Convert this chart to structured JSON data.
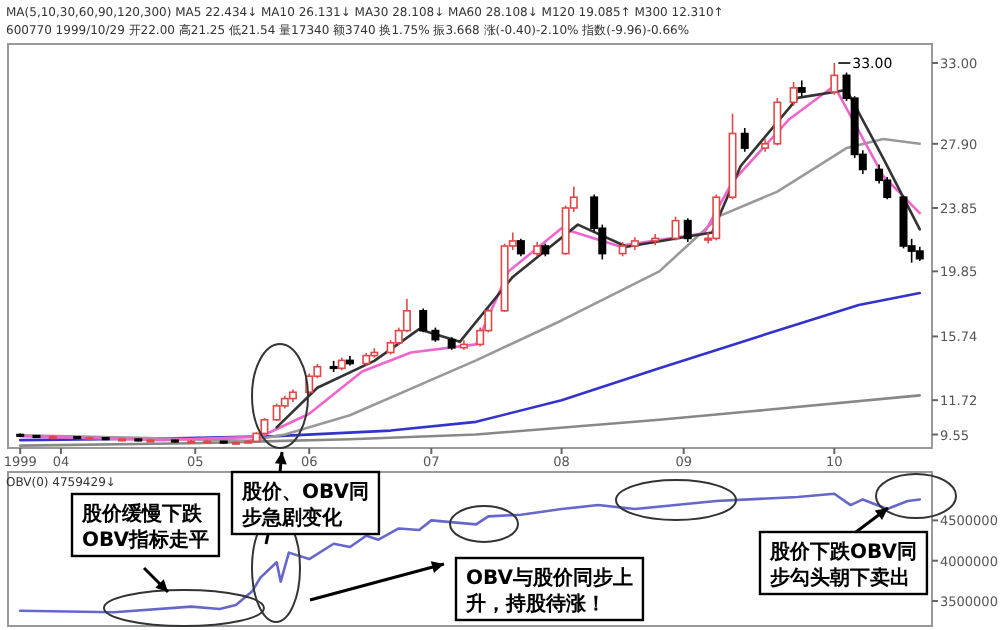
{
  "chart_data": [
    {
      "type": "candlestick",
      "annotations": [
        "MA(5,10,30,60,90,120,300)  MA5 22.434↓  MA10 26.131↓  MA30 28.108↓  MA60 28.108↓  M120 19.085↑  M300 12.310↑",
        "600770 1999/10/29 开22.00 高21.25 低21.54 量17340 额3740 换1.75% 振3.668 涨(-0.40)-2.10% 指数(-9.96)-0.66%",
        {
          "text": "33.00",
          "x": "1999-10-08",
          "y": 33.0
        }
      ],
      "x": [
        "1999-03-22",
        "1999-03-26",
        "1999-03-30",
        "1999-04-05",
        "1999-04-08",
        "1999-04-12",
        "1999-04-16",
        "1999-04-20",
        "1999-04-23",
        "1999-04-29",
        "1999-05-03",
        "1999-05-07",
        "1999-05-11",
        "1999-05-14",
        "1999-05-17",
        "1999-05-19",
        "1999-05-21",
        "1999-05-24",
        "1999-05-26",
        "1999-05-28",
        "1999-06-01",
        "1999-06-03",
        "1999-06-07",
        "1999-06-09",
        "1999-06-11",
        "1999-06-15",
        "1999-06-17",
        "1999-06-21",
        "1999-06-23",
        "1999-06-25",
        "1999-06-29",
        "1999-07-02",
        "1999-07-06",
        "1999-07-09",
        "1999-07-13",
        "1999-07-15",
        "1999-07-19",
        "1999-07-21",
        "1999-07-23",
        "1999-07-27",
        "1999-07-29",
        "1999-08-03",
        "1999-08-05",
        "1999-08-10",
        "1999-08-12",
        "1999-08-17",
        "1999-08-20",
        "1999-08-25",
        "1999-08-30",
        "1999-09-02",
        "1999-09-07",
        "1999-09-09",
        "1999-09-13",
        "1999-09-16",
        "1999-09-21",
        "1999-09-24",
        "1999-09-28",
        "1999-09-30",
        "1999-10-08",
        "1999-10-11",
        "1999-10-13",
        "1999-10-15",
        "1999-10-19",
        "1999-10-21",
        "1999-10-25",
        "1999-10-27",
        "1999-10-29"
      ],
      "ohlc": [
        [
          9.55,
          9.62,
          9.4,
          9.48
        ],
        [
          9.48,
          9.52,
          9.36,
          9.41
        ],
        [
          9.41,
          9.5,
          9.35,
          9.41
        ],
        [
          9.41,
          9.45,
          9.3,
          9.34
        ],
        [
          9.34,
          9.42,
          9.28,
          9.34
        ],
        [
          9.34,
          9.38,
          9.2,
          9.26
        ],
        [
          9.26,
          9.34,
          9.2,
          9.26
        ],
        [
          9.26,
          9.3,
          9.12,
          9.19
        ],
        [
          9.19,
          9.26,
          9.12,
          9.19
        ],
        [
          9.19,
          9.22,
          9.05,
          9.12
        ],
        [
          9.12,
          9.2,
          9.05,
          9.12
        ],
        [
          9.12,
          9.18,
          9.02,
          9.12
        ],
        [
          9.12,
          9.15,
          8.98,
          9.05
        ],
        [
          9.05,
          9.12,
          8.96,
          9.05
        ],
        [
          9.05,
          9.2,
          9.0,
          9.12
        ],
        [
          9.12,
          9.7,
          9.1,
          9.62
        ],
        [
          9.62,
          10.6,
          9.55,
          10.48
        ],
        [
          10.48,
          11.5,
          10.4,
          11.36
        ],
        [
          11.36,
          12.0,
          11.2,
          11.82
        ],
        [
          11.82,
          12.4,
          11.6,
          12.22
        ],
        [
          12.22,
          13.4,
          12.1,
          13.23
        ],
        [
          13.23,
          14.0,
          13.1,
          13.83
        ],
        [
          13.83,
          14.2,
          13.5,
          13.73
        ],
        [
          13.73,
          14.4,
          13.6,
          14.23
        ],
        [
          14.23,
          14.5,
          13.9,
          14.03
        ],
        [
          14.03,
          14.7,
          13.9,
          14.53
        ],
        [
          14.53,
          15.0,
          14.4,
          14.73
        ],
        [
          14.73,
          15.5,
          14.6,
          15.34
        ],
        [
          15.34,
          16.3,
          15.2,
          16.11
        ],
        [
          16.11,
          18.1,
          16.0,
          17.36
        ],
        [
          17.36,
          17.5,
          16.0,
          16.11
        ],
        [
          16.11,
          16.3,
          15.4,
          15.54
        ],
        [
          15.54,
          15.7,
          14.9,
          15.03
        ],
        [
          15.03,
          15.5,
          14.9,
          15.24
        ],
        [
          15.24,
          16.3,
          15.1,
          16.11
        ],
        [
          16.11,
          17.5,
          16.0,
          17.36
        ],
        [
          17.36,
          21.6,
          17.3,
          21.45
        ],
        [
          21.45,
          22.3,
          21.2,
          21.77
        ],
        [
          21.77,
          21.9,
          20.8,
          20.97
        ],
        [
          20.97,
          21.7,
          20.8,
          21.45
        ],
        [
          21.45,
          21.6,
          20.8,
          20.97
        ],
        [
          20.97,
          24.0,
          20.9,
          23.85
        ],
        [
          23.85,
          25.2,
          23.6,
          24.53
        ],
        [
          24.53,
          24.7,
          22.4,
          22.57
        ],
        [
          22.57,
          22.8,
          20.6,
          20.97
        ],
        [
          20.97,
          21.7,
          20.8,
          21.45
        ],
        [
          21.45,
          22.0,
          21.2,
          21.77
        ],
        [
          21.77,
          22.2,
          21.5,
          21.93
        ],
        [
          21.93,
          23.3,
          21.8,
          23.05
        ],
        [
          23.05,
          23.2,
          21.7,
          21.93
        ],
        [
          21.93,
          22.3,
          21.6,
          21.93
        ],
        [
          21.93,
          24.7,
          21.8,
          24.53
        ],
        [
          24.53,
          29.8,
          24.4,
          28.55
        ],
        [
          28.55,
          28.9,
          27.4,
          27.63
        ],
        [
          27.63,
          28.2,
          27.4,
          27.9
        ],
        [
          27.9,
          30.8,
          27.8,
          30.52
        ],
        [
          30.52,
          31.8,
          30.3,
          31.43
        ],
        [
          31.43,
          31.9,
          30.9,
          31.17
        ],
        [
          31.17,
          33.0,
          31.0,
          32.22
        ],
        [
          32.22,
          32.4,
          30.6,
          30.78
        ],
        [
          30.78,
          30.9,
          27.0,
          27.23
        ],
        [
          27.23,
          27.5,
          26.0,
          26.28
        ],
        [
          26.28,
          26.6,
          25.4,
          25.6
        ],
        [
          25.6,
          25.8,
          24.4,
          24.53
        ],
        [
          24.53,
          24.6,
          21.3,
          21.45
        ],
        [
          21.45,
          21.9,
          20.4,
          21.13
        ],
        [
          21.13,
          21.4,
          20.5,
          20.65
        ]
      ],
      "colors": [
        "#000000",
        "#000000",
        "#e04848",
        "#000000",
        "#e04848",
        "#000000",
        "#e04848",
        "#000000",
        "#e04848",
        "#000000",
        "#e04848",
        "#e04848",
        "#000000",
        "#e04848",
        "#e04848",
        "#e04848",
        "#e04848",
        "#e04848",
        "#e04848",
        "#e04848",
        "#e04848",
        "#e04848",
        "#000000",
        "#e04848",
        "#000000",
        "#e04848",
        "#e04848",
        "#e04848",
        "#e04848",
        "#e04848",
        "#000000",
        "#000000",
        "#000000",
        "#e04848",
        "#e04848",
        "#e04848",
        "#e04848",
        "#e04848",
        "#000000",
        "#e04848",
        "#000000",
        "#e04848",
        "#e04848",
        "#000000",
        "#000000",
        "#e04848",
        "#e04848",
        "#e04848",
        "#e04848",
        "#000000",
        "#e04848",
        "#e04848",
        "#e04848",
        "#000000",
        "#e04848",
        "#e04848",
        "#e04848",
        "#000000",
        "#e04848",
        "#000000",
        "#000000",
        "#000000",
        "#000000",
        "#000000",
        "#000000",
        "#000000",
        "#000000"
      ],
      "series": [
        {
          "type": "line",
          "color": "#3333cc",
          "x": [
            "1999-03-22",
            "1999-04-26",
            "1999-05-24",
            "1999-06-21",
            "1999-07-12",
            "1999-08-02",
            "1999-08-26",
            "1999-09-17",
            "1999-10-14",
            "1999-10-29"
          ],
          "values": [
            9.2,
            9.3,
            9.45,
            9.8,
            10.35,
            11.72,
            13.73,
            15.54,
            17.73,
            18.48
          ]
        },
        {
          "type": "line",
          "color": "#888888",
          "x": [
            "1999-03-22",
            "1999-05-03",
            "1999-06-11",
            "1999-07-12",
            "1999-08-26",
            "1999-09-17",
            "1999-10-29"
          ],
          "values": [
            8.85,
            9.0,
            9.25,
            9.55,
            10.48,
            11.0,
            12.02
          ]
        },
        {
          "type": "line",
          "color": "#999999",
          "x": [
            "1999-03-22",
            "1999-04-20",
            "1999-05-17",
            "1999-05-26",
            "1999-06-11",
            "1999-07-12",
            "1999-08-02",
            "1999-08-26",
            "1999-09-10",
            "1999-09-24",
            "1999-10-11",
            "1999-10-20",
            "1999-10-29"
          ],
          "values": [
            9.5,
            9.35,
            9.15,
            9.55,
            10.77,
            14.23,
            16.75,
            19.85,
            23.37,
            24.88,
            27.63,
            28.2,
            27.9
          ]
        },
        {
          "type": "line",
          "color": "#ee66cc",
          "x": [
            "1999-03-22",
            "1999-04-26",
            "1999-05-20",
            "1999-06-01",
            "1999-06-14",
            "1999-06-26",
            "1999-07-12",
            "1999-07-20",
            "1999-08-02",
            "1999-08-16",
            "1999-09-06",
            "1999-09-13",
            "1999-09-27",
            "1999-10-08",
            "1999-10-20",
            "1999-10-29"
          ],
          "values": [
            9.45,
            9.2,
            9.41,
            10.86,
            13.53,
            14.73,
            15.24,
            19.85,
            22.57,
            21.45,
            22.25,
            25.52,
            29.47,
            31.56,
            25.87,
            23.53
          ]
        },
        {
          "type": "line",
          "color": "#333333",
          "x": [
            "1999-05-24",
            "1999-06-03",
            "1999-06-17",
            "1999-06-28",
            "1999-07-08",
            "1999-07-21",
            "1999-08-06",
            "1999-08-18",
            "1999-09-08",
            "1999-09-15",
            "1999-09-29",
            "1999-10-11",
            "1999-10-20",
            "1999-10-29"
          ],
          "values": [
            10.0,
            12.5,
            14.2,
            16.2,
            15.4,
            19.5,
            22.8,
            21.4,
            22.3,
            26.5,
            30.8,
            31.3,
            27.0,
            22.5
          ]
        }
      ],
      "xlim": [
        "1999-03-19",
        "1999-11-01"
      ],
      "xticks": [
        {
          "value": "1999-03-22",
          "label": "1999"
        },
        {
          "value": "1999-04-01",
          "label": "04"
        },
        {
          "value": "1999-05-04",
          "label": "05"
        },
        {
          "value": "1999-06-01",
          "label": "06"
        },
        {
          "value": "1999-07-01",
          "label": "07"
        },
        {
          "value": "1999-08-02",
          "label": "08"
        },
        {
          "value": "1999-09-01",
          "label": "09"
        },
        {
          "value": "1999-10-08",
          "label": "10"
        }
      ],
      "ylim": [
        8.7,
        34.2
      ],
      "yticks": [
        9.55,
        11.72,
        15.74,
        19.85,
        23.85,
        {
          "value": 27.9,
          "label": "27.90"
        },
        {
          "value": 33,
          "label": "33.00"
        }
      ]
    },
    {
      "type": "line",
      "annotations": [
        "OBV(0) 4759429↓",
        "股价缓慢下跌OBV指标走平",
        "股价、OBV同步急剧变化",
        "OBV与股价同步上升，持股待涨！",
        "股价下跌OBV同步勾头朝下卖出"
      ],
      "series": [
        {
          "color": "#6666cc",
          "x": [
            "1999-03-22",
            "1999-04-14",
            "1999-05-03",
            "1999-05-10",
            "1999-05-14",
            "1999-05-18",
            "1999-05-20",
            "1999-05-24",
            "1999-05-25",
            "1999-05-27",
            "1999-06-01",
            "1999-06-07",
            "1999-06-11",
            "1999-06-15",
            "1999-06-18",
            "1999-06-23",
            "1999-06-28",
            "1999-07-01",
            "1999-07-12",
            "1999-07-15",
            "1999-07-23",
            "1999-08-02",
            "1999-08-11",
            "1999-08-20",
            "1999-08-30",
            "1999-09-09",
            "1999-09-17",
            "1999-09-29",
            "1999-10-08",
            "1999-10-12",
            "1999-10-15",
            "1999-10-21",
            "1999-10-26",
            "1999-10-29"
          ],
          "values": [
            3380000,
            3360000,
            3430000,
            3400000,
            3450000,
            3620000,
            3790000,
            3980000,
            3740000,
            4100000,
            4020000,
            4210000,
            4170000,
            4310000,
            4260000,
            4400000,
            4380000,
            4500000,
            4450000,
            4550000,
            4570000,
            4640000,
            4690000,
            4640000,
            4690000,
            4740000,
            4760000,
            4790000,
            4830000,
            4690000,
            4760000,
            4640000,
            4740000,
            4760000
          ]
        }
      ],
      "xlim": [
        "1999-03-19",
        "1999-11-01"
      ],
      "ylim": [
        3190000,
        5100000
      ],
      "yticks": [
        3500000,
        4000000,
        4500000
      ],
      "tick_labels": "y"
    }
  ]
}
